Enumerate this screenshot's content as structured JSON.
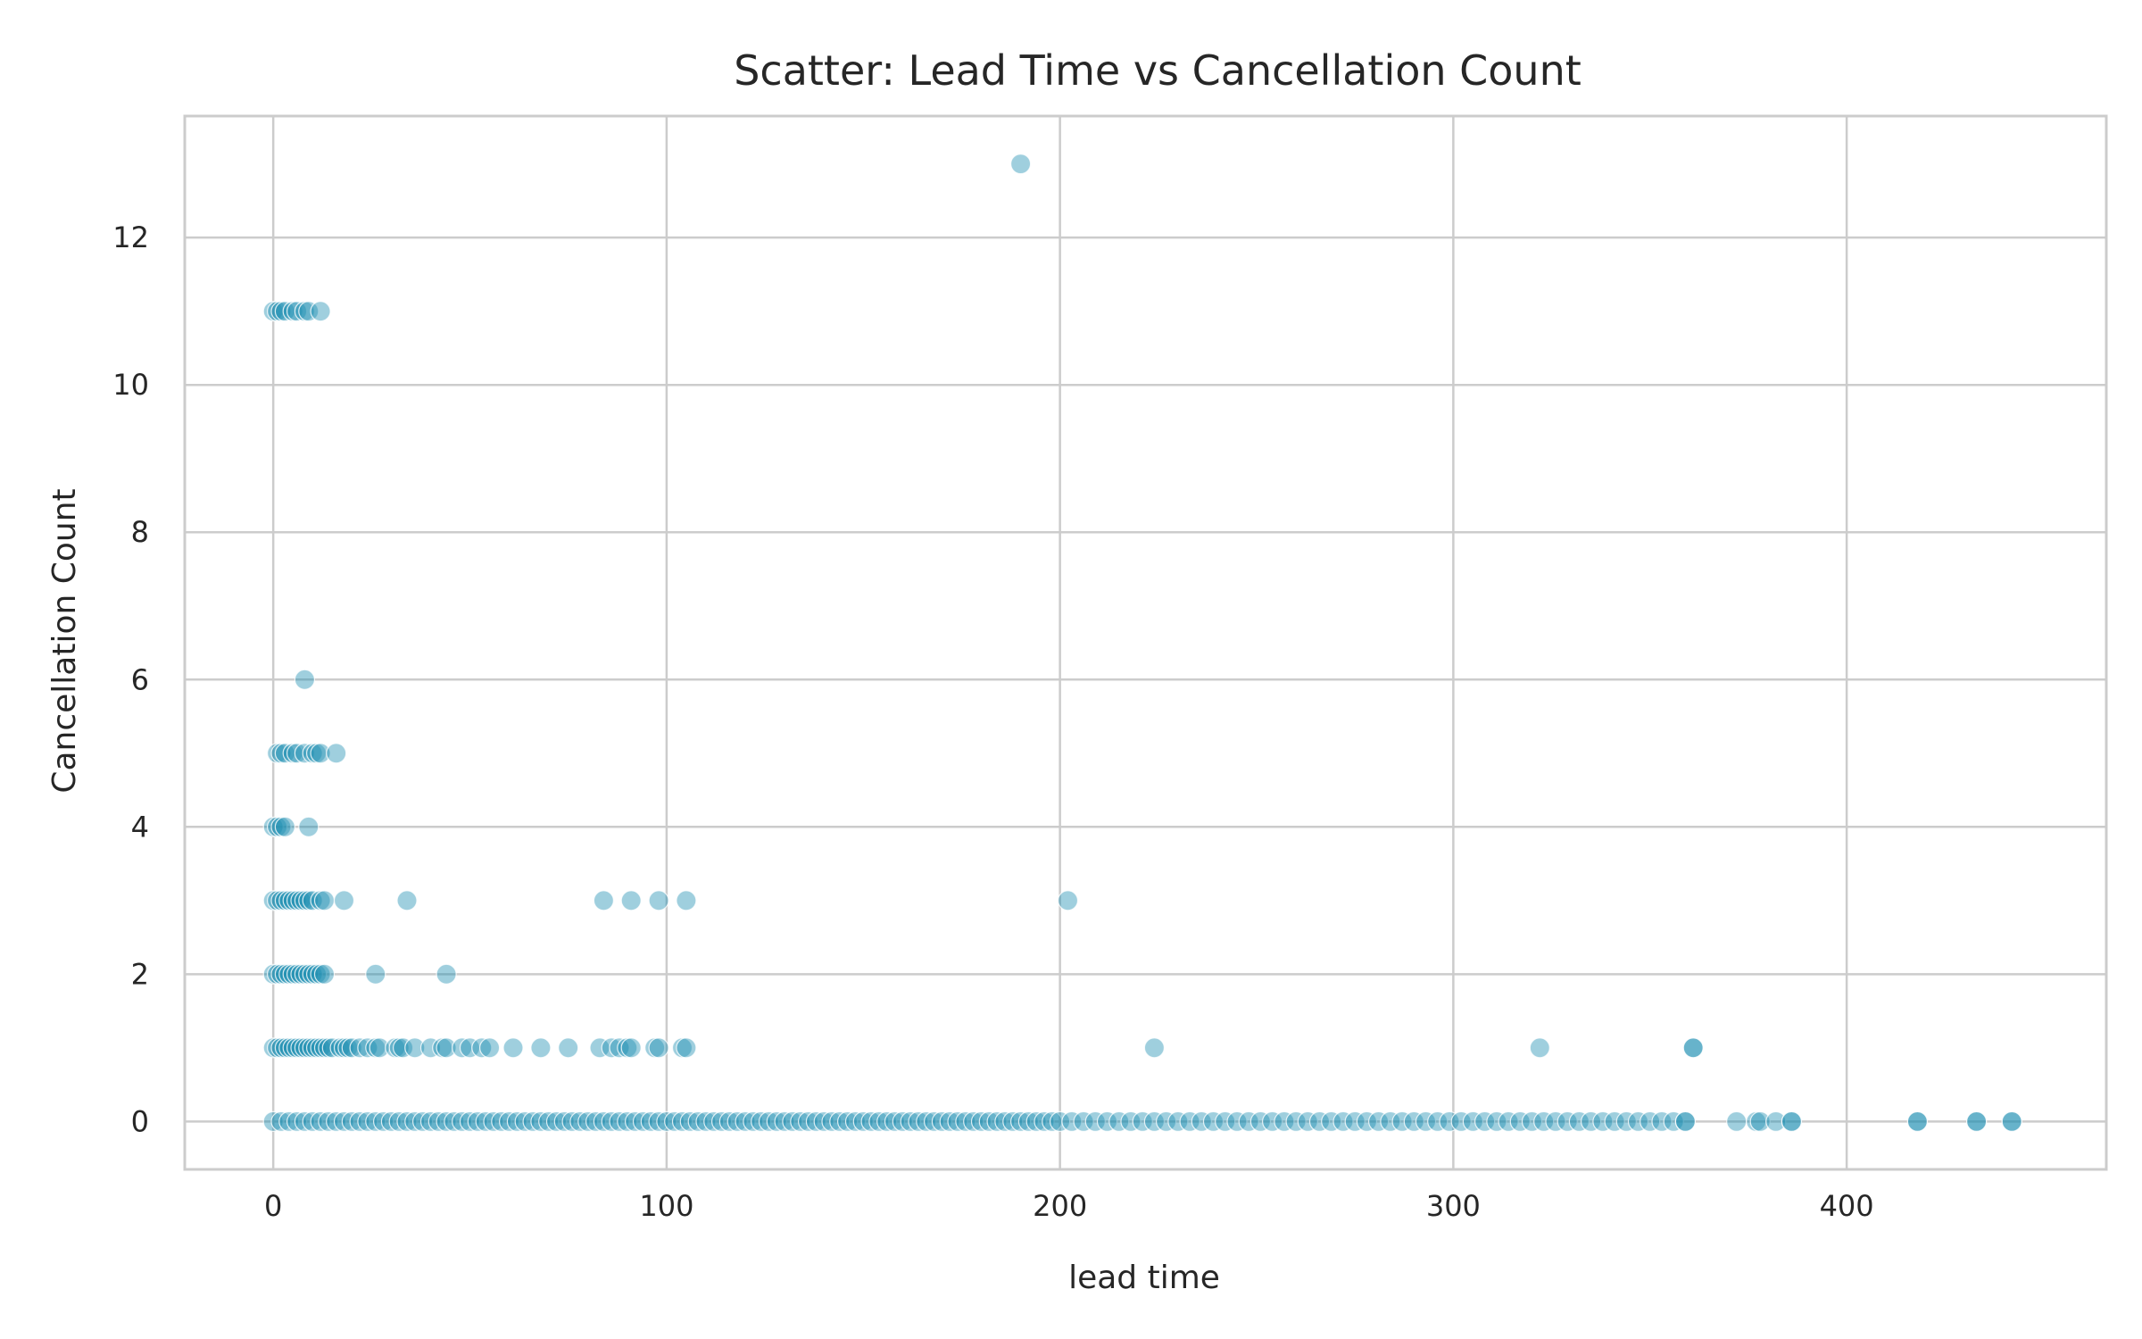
{
  "chart_data": {
    "type": "scatter",
    "title": "Scatter: Lead Time vs Cancellation Count",
    "xlabel": "lead time",
    "ylabel": "Cancellation Count",
    "xlim": [
      -22.5,
      466
    ],
    "ylim": [
      -0.65,
      13.65
    ],
    "xticks": [
      0,
      100,
      200,
      300,
      400
    ],
    "yticks": [
      0,
      2,
      4,
      6,
      8,
      10,
      12
    ],
    "grid": true,
    "legend": "none",
    "colors": {
      "point": "#1a8cb0",
      "grid": "#cccccc",
      "frame": "#cccccc",
      "text": "#262626"
    },
    "point_opacity": 0.42,
    "points": [
      [
        190,
        13
      ],
      [
        0,
        11
      ],
      [
        1,
        11
      ],
      [
        2,
        11
      ],
      [
        3,
        11
      ],
      [
        5,
        11
      ],
      [
        6,
        11
      ],
      [
        8,
        11
      ],
      [
        9,
        11
      ],
      [
        12,
        11
      ],
      [
        8,
        6
      ],
      [
        1,
        5
      ],
      [
        2,
        5
      ],
      [
        3,
        5
      ],
      [
        5,
        5
      ],
      [
        6,
        5
      ],
      [
        8,
        5
      ],
      [
        10,
        5
      ],
      [
        11,
        5
      ],
      [
        12,
        5
      ],
      [
        16,
        5
      ],
      [
        0,
        4
      ],
      [
        1,
        4
      ],
      [
        2,
        4
      ],
      [
        3,
        4
      ],
      [
        9,
        4
      ],
      [
        0,
        3
      ],
      [
        1,
        3
      ],
      [
        2,
        3
      ],
      [
        3,
        3
      ],
      [
        4,
        3
      ],
      [
        5,
        3
      ],
      [
        6,
        3
      ],
      [
        7,
        3
      ],
      [
        8,
        3
      ],
      [
        9,
        3
      ],
      [
        10,
        3
      ],
      [
        12,
        3
      ],
      [
        13,
        3
      ],
      [
        18,
        3
      ],
      [
        34,
        3
      ],
      [
        84,
        3
      ],
      [
        91,
        3
      ],
      [
        98,
        3
      ],
      [
        105,
        3
      ],
      [
        202,
        3
      ],
      [
        0,
        2
      ],
      [
        1,
        2
      ],
      [
        2,
        2
      ],
      [
        3,
        2
      ],
      [
        4,
        2
      ],
      [
        5,
        2
      ],
      [
        6,
        2
      ],
      [
        7,
        2
      ],
      [
        8,
        2
      ],
      [
        9,
        2
      ],
      [
        10,
        2
      ],
      [
        11,
        2
      ],
      [
        12,
        2
      ],
      [
        13,
        2
      ],
      [
        26,
        2
      ],
      [
        44,
        2
      ],
      [
        0,
        1
      ],
      [
        1,
        1
      ],
      [
        2,
        1
      ],
      [
        3,
        1
      ],
      [
        4,
        1
      ],
      [
        5,
        1
      ],
      [
        6,
        1
      ],
      [
        7,
        1
      ],
      [
        8,
        1
      ],
      [
        9,
        1
      ],
      [
        10,
        1
      ],
      [
        11,
        1
      ],
      [
        12,
        1
      ],
      [
        13,
        1
      ],
      [
        14,
        1
      ],
      [
        15,
        1
      ],
      [
        17,
        1
      ],
      [
        18,
        1
      ],
      [
        19,
        1
      ],
      [
        20,
        1
      ],
      [
        22,
        1
      ],
      [
        24,
        1
      ],
      [
        26,
        1
      ],
      [
        27,
        1
      ],
      [
        31,
        1
      ],
      [
        32,
        1
      ],
      [
        33,
        1
      ],
      [
        36,
        1
      ],
      [
        40,
        1
      ],
      [
        43,
        1
      ],
      [
        44,
        1
      ],
      [
        48,
        1
      ],
      [
        50,
        1
      ],
      [
        53,
        1
      ],
      [
        55,
        1
      ],
      [
        61,
        1
      ],
      [
        68,
        1
      ],
      [
        75,
        1
      ],
      [
        83,
        1
      ],
      [
        86,
        1
      ],
      [
        88,
        1
      ],
      [
        90,
        1
      ],
      [
        91,
        1
      ],
      [
        97,
        1
      ],
      [
        98,
        1
      ],
      [
        104,
        1
      ],
      [
        105,
        1
      ],
      [
        224,
        1
      ],
      [
        322,
        1
      ],
      [
        361,
        1
      ],
      [
        361,
        1
      ],
      [
        0,
        0
      ],
      [
        2,
        0
      ],
      [
        4,
        0
      ],
      [
        6,
        0
      ],
      [
        8,
        0
      ],
      [
        10,
        0
      ],
      [
        12,
        0
      ],
      [
        14,
        0
      ],
      [
        16,
        0
      ],
      [
        18,
        0
      ],
      [
        20,
        0
      ],
      [
        22,
        0
      ],
      [
        24,
        0
      ],
      [
        26,
        0
      ],
      [
        28,
        0
      ],
      [
        30,
        0
      ],
      [
        32,
        0
      ],
      [
        34,
        0
      ],
      [
        36,
        0
      ],
      [
        38,
        0
      ],
      [
        40,
        0
      ],
      [
        42,
        0
      ],
      [
        44,
        0
      ],
      [
        46,
        0
      ],
      [
        48,
        0
      ],
      [
        50,
        0
      ],
      [
        52,
        0
      ],
      [
        54,
        0
      ],
      [
        56,
        0
      ],
      [
        58,
        0
      ],
      [
        60,
        0
      ],
      [
        62,
        0
      ],
      [
        64,
        0
      ],
      [
        66,
        0
      ],
      [
        68,
        0
      ],
      [
        70,
        0
      ],
      [
        72,
        0
      ],
      [
        74,
        0
      ],
      [
        76,
        0
      ],
      [
        78,
        0
      ],
      [
        80,
        0
      ],
      [
        82,
        0
      ],
      [
        84,
        0
      ],
      [
        86,
        0
      ],
      [
        88,
        0
      ],
      [
        90,
        0
      ],
      [
        92,
        0
      ],
      [
        94,
        0
      ],
      [
        96,
        0
      ],
      [
        98,
        0
      ],
      [
        100,
        0
      ],
      [
        102,
        0
      ],
      [
        104,
        0
      ],
      [
        106,
        0
      ],
      [
        108,
        0
      ],
      [
        110,
        0
      ],
      [
        112,
        0
      ],
      [
        114,
        0
      ],
      [
        116,
        0
      ],
      [
        118,
        0
      ],
      [
        120,
        0
      ],
      [
        122,
        0
      ],
      [
        124,
        0
      ],
      [
        126,
        0
      ],
      [
        128,
        0
      ],
      [
        130,
        0
      ],
      [
        132,
        0
      ],
      [
        134,
        0
      ],
      [
        136,
        0
      ],
      [
        138,
        0
      ],
      [
        140,
        0
      ],
      [
        142,
        0
      ],
      [
        144,
        0
      ],
      [
        146,
        0
      ],
      [
        148,
        0
      ],
      [
        150,
        0
      ],
      [
        152,
        0
      ],
      [
        154,
        0
      ],
      [
        156,
        0
      ],
      [
        158,
        0
      ],
      [
        160,
        0
      ],
      [
        162,
        0
      ],
      [
        164,
        0
      ],
      [
        166,
        0
      ],
      [
        168,
        0
      ],
      [
        170,
        0
      ],
      [
        172,
        0
      ],
      [
        174,
        0
      ],
      [
        176,
        0
      ],
      [
        178,
        0
      ],
      [
        180,
        0
      ],
      [
        182,
        0
      ],
      [
        184,
        0
      ],
      [
        186,
        0
      ],
      [
        188,
        0
      ],
      [
        190,
        0
      ],
      [
        192,
        0
      ],
      [
        194,
        0
      ],
      [
        196,
        0
      ],
      [
        198,
        0
      ],
      [
        200,
        0
      ],
      [
        203,
        0
      ],
      [
        206,
        0
      ],
      [
        209,
        0
      ],
      [
        212,
        0
      ],
      [
        215,
        0
      ],
      [
        218,
        0
      ],
      [
        221,
        0
      ],
      [
        224,
        0
      ],
      [
        227,
        0
      ],
      [
        230,
        0
      ],
      [
        233,
        0
      ],
      [
        236,
        0
      ],
      [
        239,
        0
      ],
      [
        242,
        0
      ],
      [
        245,
        0
      ],
      [
        248,
        0
      ],
      [
        251,
        0
      ],
      [
        254,
        0
      ],
      [
        257,
        0
      ],
      [
        260,
        0
      ],
      [
        263,
        0
      ],
      [
        266,
        0
      ],
      [
        269,
        0
      ],
      [
        272,
        0
      ],
      [
        275,
        0
      ],
      [
        278,
        0
      ],
      [
        281,
        0
      ],
      [
        284,
        0
      ],
      [
        287,
        0
      ],
      [
        290,
        0
      ],
      [
        293,
        0
      ],
      [
        296,
        0
      ],
      [
        299,
        0
      ],
      [
        302,
        0
      ],
      [
        305,
        0
      ],
      [
        308,
        0
      ],
      [
        311,
        0
      ],
      [
        314,
        0
      ],
      [
        317,
        0
      ],
      [
        320,
        0
      ],
      [
        323,
        0
      ],
      [
        326,
        0
      ],
      [
        329,
        0
      ],
      [
        332,
        0
      ],
      [
        335,
        0
      ],
      [
        338,
        0
      ],
      [
        341,
        0
      ],
      [
        344,
        0
      ],
      [
        347,
        0
      ],
      [
        350,
        0
      ],
      [
        353,
        0
      ],
      [
        356,
        0
      ],
      [
        359,
        0
      ],
      [
        359,
        0
      ],
      [
        372,
        0
      ],
      [
        377,
        0
      ],
      [
        378,
        0
      ],
      [
        382,
        0
      ],
      [
        386,
        0
      ],
      [
        386,
        0
      ],
      [
        418,
        0
      ],
      [
        418,
        0
      ],
      [
        433,
        0
      ],
      [
        433,
        0
      ],
      [
        442,
        0
      ],
      [
        442,
        0
      ]
    ]
  }
}
